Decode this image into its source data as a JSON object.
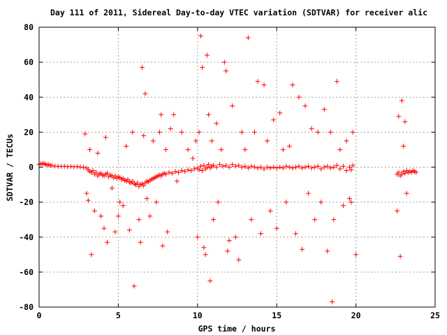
{
  "chart_data": {
    "type": "scatter",
    "title": "Day 111 of 2011, Sidereal Day-to-day VTEC variation (SDTVAR) for receiver alic",
    "xlabel": "GPS time / hours",
    "ylabel": "SDTVAR / TECUs",
    "xlim": [
      0,
      25
    ],
    "ylim": [
      -80,
      80
    ],
    "xticks": [
      0,
      5,
      10,
      15,
      20,
      25
    ],
    "yticks": [
      -80,
      -60,
      -40,
      -20,
      0,
      20,
      40,
      60,
      80
    ],
    "xtick_labels": [
      "0",
      "5",
      "10",
      "15",
      "20",
      "25"
    ],
    "ytick_labels": [
      "-80",
      "-60",
      "-40",
      "-20",
      "0",
      "20",
      "40",
      "60",
      "80"
    ],
    "grid": true,
    "marker": "+",
    "color": "#ff0000",
    "series": [
      {
        "name": "SDTVAR",
        "note": "dense band near zero plus scattered outliers; dense portion represented by sampled points",
        "points": [
          [
            0.0,
            1.5
          ],
          [
            0.1,
            2.0
          ],
          [
            0.2,
            1.8
          ],
          [
            0.3,
            2.2
          ],
          [
            0.4,
            1.6
          ],
          [
            0.5,
            1.2
          ],
          [
            0.6,
            1.4
          ],
          [
            0.7,
            1.0
          ],
          [
            0.8,
            0.9
          ],
          [
            1.0,
            0.6
          ],
          [
            1.2,
            0.5
          ],
          [
            1.4,
            0.4
          ],
          [
            1.6,
            0.5
          ],
          [
            1.8,
            0.3
          ],
          [
            2.0,
            0.4
          ],
          [
            2.2,
            0.2
          ],
          [
            2.4,
            0.3
          ],
          [
            2.6,
            0.1
          ],
          [
            2.8,
            -0.2
          ],
          [
            3.0,
            -0.5
          ],
          [
            3.1,
            -1.5
          ],
          [
            3.2,
            -2.5
          ],
          [
            3.3,
            -3.0
          ],
          [
            3.4,
            -2.0
          ],
          [
            3.5,
            -4.0
          ],
          [
            3.6,
            -3.0
          ],
          [
            3.7,
            -5.0
          ],
          [
            3.8,
            -4.0
          ],
          [
            3.9,
            -3.5
          ],
          [
            4.0,
            -4.5
          ],
          [
            4.1,
            -5.0
          ],
          [
            4.2,
            -4.0
          ],
          [
            4.3,
            -3.5
          ],
          [
            4.4,
            -5.5
          ],
          [
            4.5,
            -4.5
          ],
          [
            4.6,
            -5.0
          ],
          [
            4.7,
            -6.0
          ],
          [
            4.8,
            -5.0
          ],
          [
            4.9,
            -6.5
          ],
          [
            5.0,
            -5.5
          ],
          [
            5.1,
            -6.0
          ],
          [
            5.2,
            -7.0
          ],
          [
            5.3,
            -6.5
          ],
          [
            5.4,
            -7.5
          ],
          [
            5.5,
            -8.0
          ],
          [
            5.6,
            -7.0
          ],
          [
            5.7,
            -8.5
          ],
          [
            5.8,
            -9.0
          ],
          [
            5.9,
            -8.0
          ],
          [
            6.0,
            -9.5
          ],
          [
            6.1,
            -10.0
          ],
          [
            6.2,
            -9.0
          ],
          [
            6.3,
            -11.0
          ],
          [
            6.4,
            -10.0
          ],
          [
            6.5,
            -9.5
          ],
          [
            6.6,
            -10.5
          ],
          [
            6.7,
            -9.0
          ],
          [
            6.8,
            -8.0
          ],
          [
            6.9,
            -8.5
          ],
          [
            7.0,
            -7.5
          ],
          [
            7.1,
            -7.0
          ],
          [
            7.2,
            -6.5
          ],
          [
            7.3,
            -6.0
          ],
          [
            7.4,
            -5.5
          ],
          [
            7.5,
            -5.0
          ],
          [
            7.6,
            -4.5
          ],
          [
            7.7,
            -5.0
          ],
          [
            7.8,
            -4.0
          ],
          [
            7.9,
            -3.5
          ],
          [
            8.0,
            -4.0
          ],
          [
            8.2,
            -3.0
          ],
          [
            8.4,
            -3.5
          ],
          [
            8.6,
            -2.5
          ],
          [
            8.8,
            -3.0
          ],
          [
            9.0,
            -2.0
          ],
          [
            9.2,
            -2.5
          ],
          [
            9.4,
            -1.5
          ],
          [
            9.6,
            -2.0
          ],
          [
            9.8,
            -1.0
          ],
          [
            10.0,
            -0.5
          ],
          [
            10.1,
            -1.5
          ],
          [
            10.2,
            0.5
          ],
          [
            10.3,
            -2.0
          ],
          [
            10.4,
            1.0
          ],
          [
            10.5,
            -1.0
          ],
          [
            10.6,
            0.0
          ],
          [
            10.7,
            1.5
          ],
          [
            10.8,
            -0.5
          ],
          [
            10.9,
            0.5
          ],
          [
            11.0,
            1.0
          ],
          [
            11.2,
            0.0
          ],
          [
            11.4,
            1.5
          ],
          [
            11.6,
            0.5
          ],
          [
            11.8,
            1.0
          ],
          [
            12.0,
            0.0
          ],
          [
            12.2,
            1.5
          ],
          [
            12.4,
            0.5
          ],
          [
            12.6,
            1.0
          ],
          [
            12.8,
            0.0
          ],
          [
            13.0,
            0.5
          ],
          [
            13.2,
            -0.5
          ],
          [
            13.4,
            0.5
          ],
          [
            13.6,
            0.0
          ],
          [
            13.8,
            -0.5
          ],
          [
            14.0,
            0.0
          ],
          [
            14.2,
            -1.0
          ],
          [
            14.4,
            0.0
          ],
          [
            14.6,
            -0.5
          ],
          [
            14.8,
            0.0
          ],
          [
            15.0,
            -0.5
          ],
          [
            15.2,
            0.0
          ],
          [
            15.4,
            -0.5
          ],
          [
            15.6,
            0.5
          ],
          [
            15.8,
            0.0
          ],
          [
            16.0,
            -0.5
          ],
          [
            16.2,
            0.0
          ],
          [
            16.4,
            0.5
          ],
          [
            16.6,
            -0.5
          ],
          [
            16.8,
            0.0
          ],
          [
            17.0,
            0.5
          ],
          [
            17.2,
            -0.5
          ],
          [
            17.4,
            0.0
          ],
          [
            17.6,
            0.5
          ],
          [
            17.8,
            -1.0
          ],
          [
            18.0,
            0.0
          ],
          [
            18.2,
            0.5
          ],
          [
            18.4,
            -0.5
          ],
          [
            18.6,
            0.0
          ],
          [
            18.8,
            1.0
          ],
          [
            19.0,
            -1.0
          ],
          [
            19.2,
            0.5
          ],
          [
            19.4,
            -2.0
          ],
          [
            19.6,
            0.0
          ],
          [
            19.7,
            -1.5
          ],
          [
            19.8,
            1.0
          ],
          [
            22.6,
            -4.0
          ],
          [
            22.7,
            -3.0
          ],
          [
            22.8,
            -5.0
          ],
          [
            22.9,
            -4.0
          ],
          [
            23.0,
            -2.5
          ],
          [
            23.1,
            -3.5
          ],
          [
            23.2,
            -2.0
          ],
          [
            23.3,
            -3.0
          ],
          [
            23.4,
            -2.5
          ],
          [
            23.5,
            -3.0
          ],
          [
            23.6,
            -2.0
          ],
          [
            23.7,
            -2.5
          ],
          [
            23.8,
            -3.0
          ],
          [
            3.0,
            -15
          ],
          [
            3.1,
            -19
          ],
          [
            2.9,
            19
          ],
          [
            3.2,
            10
          ],
          [
            3.3,
            -50
          ],
          [
            3.5,
            -25
          ],
          [
            3.7,
            8
          ],
          [
            3.9,
            -28
          ],
          [
            4.1,
            -35
          ],
          [
            4.2,
            17
          ],
          [
            4.3,
            -43
          ],
          [
            4.6,
            -12
          ],
          [
            4.8,
            -37
          ],
          [
            5.0,
            -28
          ],
          [
            5.1,
            -20
          ],
          [
            5.3,
            -22
          ],
          [
            5.5,
            12
          ],
          [
            5.7,
            -36
          ],
          [
            5.9,
            20
          ],
          [
            6.0,
            -68
          ],
          [
            6.1,
            -10
          ],
          [
            6.3,
            -30
          ],
          [
            6.4,
            -43
          ],
          [
            6.5,
            57
          ],
          [
            6.6,
            18
          ],
          [
            6.7,
            42
          ],
          [
            6.8,
            -18
          ],
          [
            7.0,
            -28
          ],
          [
            7.2,
            15
          ],
          [
            7.4,
            -20
          ],
          [
            7.6,
            20
          ],
          [
            7.7,
            30
          ],
          [
            7.8,
            -45
          ],
          [
            8.0,
            10
          ],
          [
            8.1,
            -37
          ],
          [
            8.3,
            22
          ],
          [
            8.5,
            30
          ],
          [
            8.7,
            -8
          ],
          [
            9.0,
            20
          ],
          [
            9.4,
            10
          ],
          [
            9.7,
            5
          ],
          [
            9.9,
            15
          ],
          [
            10.0,
            -40
          ],
          [
            10.1,
            20
          ],
          [
            10.2,
            75
          ],
          [
            10.3,
            57
          ],
          [
            10.4,
            -46
          ],
          [
            10.5,
            -50
          ],
          [
            10.6,
            64
          ],
          [
            10.7,
            30
          ],
          [
            10.8,
            -65
          ],
          [
            10.9,
            15
          ],
          [
            11.0,
            -30
          ],
          [
            11.2,
            25
          ],
          [
            11.3,
            -20
          ],
          [
            11.5,
            10
          ],
          [
            11.7,
            60
          ],
          [
            11.8,
            55
          ],
          [
            11.9,
            -48
          ],
          [
            12.0,
            -42
          ],
          [
            12.2,
            35
          ],
          [
            12.4,
            -40
          ],
          [
            12.6,
            -53
          ],
          [
            12.8,
            20
          ],
          [
            13.0,
            10
          ],
          [
            13.2,
            74
          ],
          [
            13.4,
            -30
          ],
          [
            13.6,
            20
          ],
          [
            13.8,
            49
          ],
          [
            14.0,
            -38
          ],
          [
            14.2,
            47
          ],
          [
            14.4,
            15
          ],
          [
            14.6,
            -25
          ],
          [
            14.8,
            27
          ],
          [
            15.0,
            -35
          ],
          [
            15.2,
            31
          ],
          [
            15.4,
            10
          ],
          [
            15.6,
            -20
          ],
          [
            15.8,
            12
          ],
          [
            16.0,
            47
          ],
          [
            16.2,
            -38
          ],
          [
            16.4,
            40
          ],
          [
            16.6,
            -47
          ],
          [
            16.8,
            35
          ],
          [
            17.0,
            -15
          ],
          [
            17.2,
            22
          ],
          [
            17.4,
            -30
          ],
          [
            17.6,
            20
          ],
          [
            17.8,
            -20
          ],
          [
            18.0,
            33
          ],
          [
            18.2,
            -48
          ],
          [
            18.4,
            20
          ],
          [
            18.6,
            -30
          ],
          [
            18.8,
            49
          ],
          [
            19.0,
            10
          ],
          [
            19.2,
            -22
          ],
          [
            19.4,
            15
          ],
          [
            19.6,
            -18
          ],
          [
            19.8,
            20
          ],
          [
            20.0,
            -50
          ],
          [
            18.5,
            -77
          ],
          [
            19.7,
            -20
          ],
          [
            22.6,
            -25
          ],
          [
            22.7,
            29
          ],
          [
            22.9,
            38
          ],
          [
            23.0,
            12
          ],
          [
            22.8,
            -51
          ],
          [
            23.1,
            26
          ],
          [
            23.2,
            -15
          ]
        ]
      }
    ]
  }
}
